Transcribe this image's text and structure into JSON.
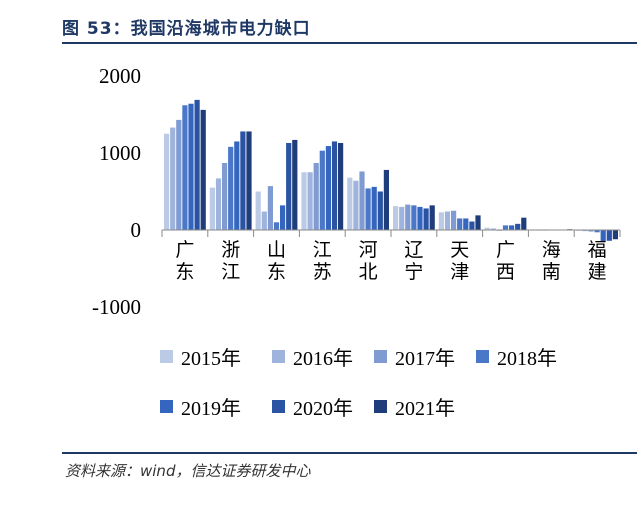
{
  "title": "图 53：我国沿海城市电力缺口",
  "source": "资料来源：wind，信达证券研发中心",
  "colors": [
    "#bccbe5",
    "#9fb4dc",
    "#7f9bd1",
    "#4b77c9",
    "#3466c0",
    "#2a53a3",
    "#1e3d7a"
  ],
  "chart_data": {
    "type": "bar",
    "categories": [
      "广东",
      "浙江",
      "山东",
      "江苏",
      "河北",
      "辽宁",
      "天津",
      "广西",
      "海南",
      "福建"
    ],
    "ylim": [
      -1000,
      2000
    ],
    "yticks": [
      2000,
      1000,
      0,
      -1000
    ],
    "ytick_labels": [
      "2000",
      "1000",
      "0",
      "-1000"
    ],
    "legend_position": "bottom",
    "series": [
      {
        "name": "2015年",
        "values": [
          1250,
          550,
          500,
          750,
          680,
          310,
          230,
          30,
          0,
          -10
        ]
      },
      {
        "name": "2016年",
        "values": [
          1330,
          670,
          240,
          750,
          640,
          300,
          240,
          20,
          0,
          -15
        ]
      },
      {
        "name": "2017年",
        "values": [
          1430,
          870,
          570,
          870,
          760,
          330,
          250,
          -10,
          0,
          -20
        ]
      },
      {
        "name": "2018年",
        "values": [
          1620,
          1080,
          100,
          1030,
          540,
          320,
          150,
          60,
          5,
          -30
        ]
      },
      {
        "name": "2019年",
        "values": [
          1640,
          1150,
          320,
          1090,
          560,
          300,
          150,
          60,
          5,
          -150
        ]
      },
      {
        "name": "2020年",
        "values": [
          1690,
          1280,
          1130,
          1150,
          500,
          280,
          110,
          80,
          5,
          -140
        ]
      },
      {
        "name": "2021年",
        "values": [
          1560,
          1280,
          1170,
          1130,
          780,
          320,
          190,
          160,
          10,
          -120
        ]
      }
    ]
  }
}
